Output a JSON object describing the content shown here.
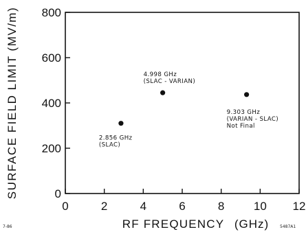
{
  "chart_data": {
    "type": "scatter",
    "title": "",
    "xlabel": "RF FREQUENCY",
    "xunit": "(GHz)",
    "ylabel": "SURFACE FIELD LIMIT (MV/m)",
    "xlim": [
      0,
      12
    ],
    "ylim": [
      0,
      800
    ],
    "x_ticks": [
      "0",
      "2",
      "4",
      "6",
      "8",
      "10",
      "12"
    ],
    "y_ticks": [
      "0",
      "200",
      "400",
      "600",
      "800"
    ],
    "grid": false,
    "points": [
      {
        "x": 2.856,
        "y": 310,
        "label": [
          "2.856 GHz",
          "(SLAC)"
        ]
      },
      {
        "x": 4.998,
        "y": 445,
        "label": [
          "4.998 GHz",
          "(SLAC - VARIAN)"
        ]
      },
      {
        "x": 9.303,
        "y": 437,
        "label": [
          "9.303 GHz",
          "(VARIAN - SLAC)",
          "Not Final"
        ]
      }
    ]
  },
  "footer": {
    "left_note": "7-86",
    "right_note": "5487A1"
  },
  "colors": {
    "ink": "#111111",
    "background": "#ffffff"
  }
}
